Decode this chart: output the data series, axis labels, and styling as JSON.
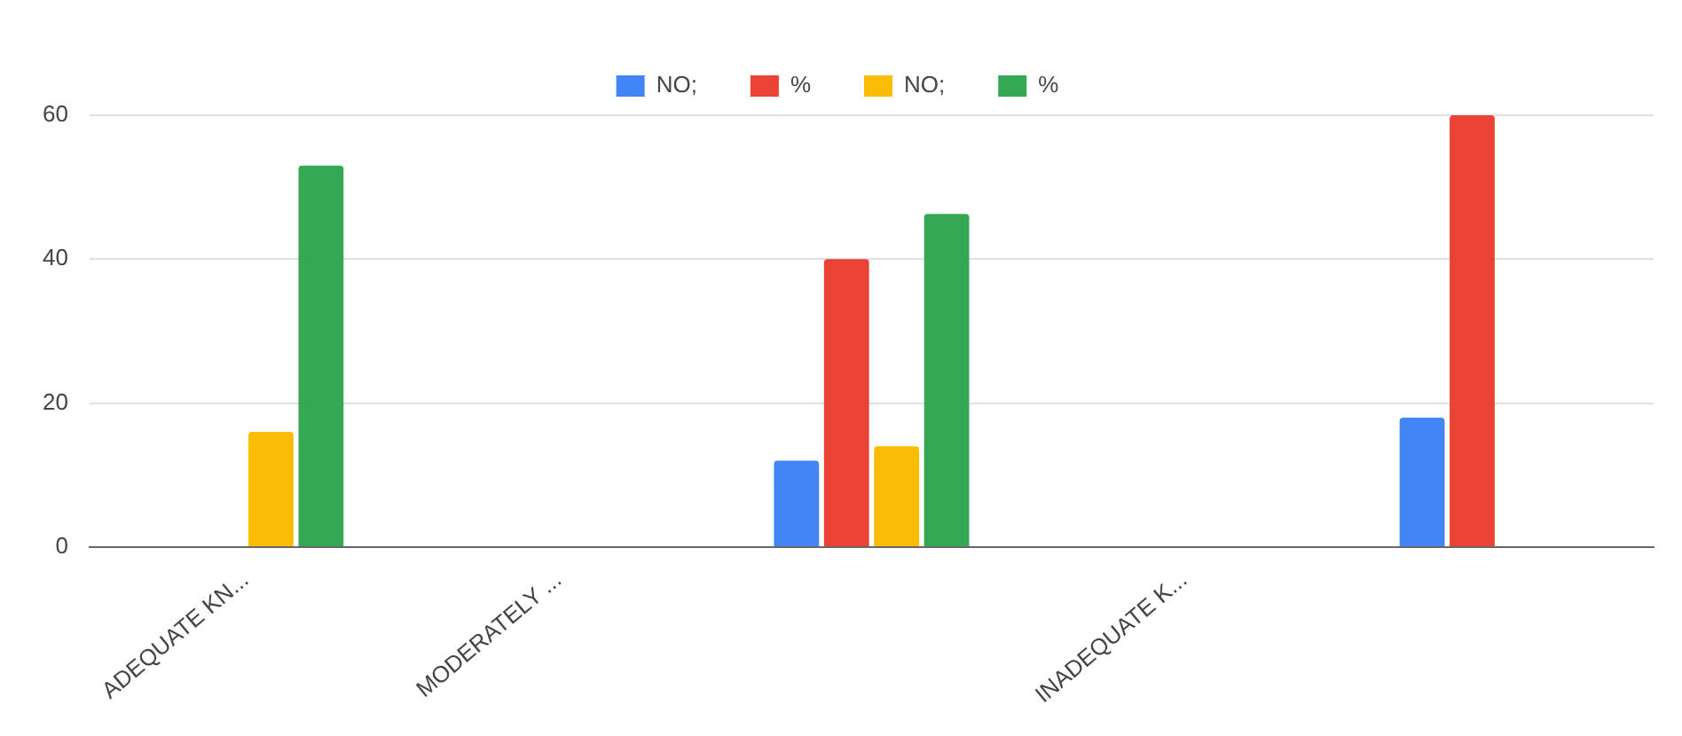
{
  "chart_data": {
    "type": "bar",
    "categories": [
      "ADEQUATE KN...",
      "MODERATELY ...",
      null,
      "INADEQUATE K...",
      null
    ],
    "series": [
      {
        "name": "NO;",
        "color": "#4285f4",
        "values": [
          null,
          null,
          12,
          null,
          18
        ]
      },
      {
        "name": "%",
        "color": "#ea4335",
        "values": [
          null,
          null,
          40,
          null,
          60
        ]
      },
      {
        "name": "NO;",
        "color": "#fbbc04",
        "values": [
          16,
          null,
          14,
          null,
          null
        ]
      },
      {
        "name": "%",
        "color": "#34a853",
        "values": [
          53,
          null,
          46.3,
          null,
          null
        ]
      }
    ],
    "ylim": [
      0,
      60
    ],
    "yticks": [
      0,
      20,
      40,
      60
    ],
    "grid": "y",
    "legend": "top"
  }
}
